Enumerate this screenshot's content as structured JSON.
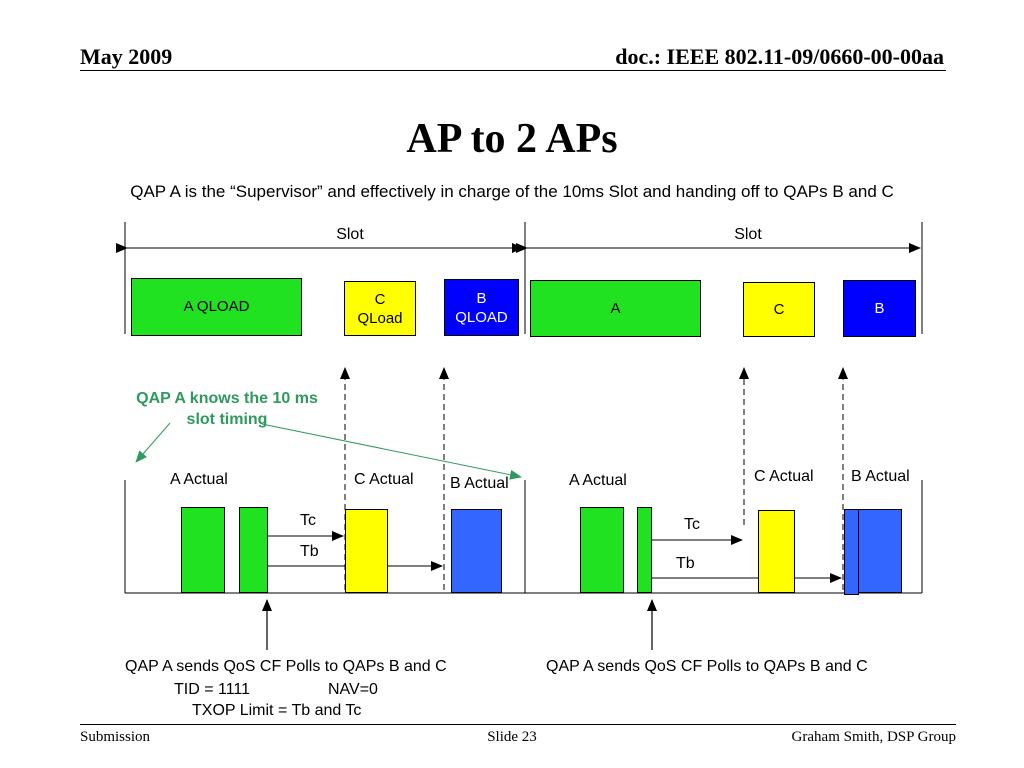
{
  "header": {
    "date": "May  2009",
    "doc": "doc.: IEEE 802.11-09/0660-00-00aa"
  },
  "title": "AP to 2 APs",
  "subtitle": "QAP A is the “Supervisor” and effectively in charge of the 10ms Slot and handing off to QAPs B and C",
  "diagram": {
    "slot_label_1": "Slot",
    "slot_label_2": "Slot",
    "top_boxes": {
      "a_qload": "A QLOAD",
      "c_qload_line1": "C",
      "c_qload_line2": "QLoad",
      "b_qload_line1": "B",
      "b_qload_line2": "QLOAD",
      "a": "A",
      "c": "C",
      "b": "B"
    },
    "note_line1": "QAP A knows the 10 ms",
    "note_line2": "slot timing",
    "actual": {
      "a1": "A Actual",
      "c1": "C Actual",
      "b1": "B Actual",
      "a2": "A Actual",
      "c2": "C Actual",
      "b2": "B Actual"
    },
    "timing": {
      "tc1": "Tc",
      "tb1": "Tb",
      "tc2": "Tc",
      "tb2": "Tb"
    },
    "polls_1": "QAP A sends QoS CF Polls to QAPs B and C",
    "tid": "TID = 1111",
    "nav": "NAV=0",
    "txop": "TXOP Limit = Tb and Tc",
    "polls_2": "QAP A sends QoS CF Polls to QAPs B and C"
  },
  "colors": {
    "green": "#21e221",
    "yellow": "#ffff00",
    "blue_dark": "#0000ff",
    "blue_light": "#3366ff",
    "note_green": "#2e9a5e"
  },
  "footer": {
    "left": "Submission",
    "center": "Slide 23",
    "right": "Graham Smith, DSP Group"
  }
}
